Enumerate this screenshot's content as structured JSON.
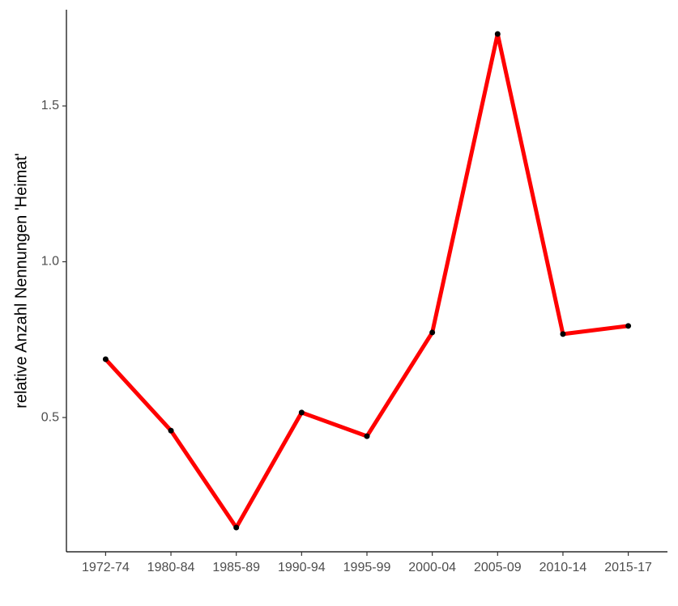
{
  "chart_data": {
    "type": "line",
    "y_label": "relative Anzahl Nennungen 'Heimat'",
    "categories": [
      "1972-74",
      "1980-84",
      "1985-89",
      "1990-94",
      "1995-99",
      "2000-04",
      "2005-09",
      "2010-14",
      "2015-17"
    ],
    "values": [
      0.687,
      0.458,
      0.147,
      0.516,
      0.44,
      0.773,
      1.731,
      0.768,
      0.794
    ],
    "color": "#ff0000",
    "point_color": "#000000",
    "ylim": [
      0.069,
      1.809
    ],
    "yticks": [
      0.5,
      {
        "value": 1.0,
        "label": "1.0"
      },
      1.5
    ],
    "grid": false
  }
}
